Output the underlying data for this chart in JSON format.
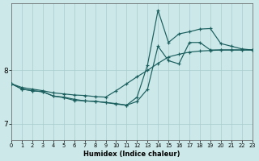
{
  "xlabel": "Humidex (Indice chaleur)",
  "bg_color": "#cce8e8",
  "grid_color": "#a8cccc",
  "line_color": "#1a5e5e",
  "xlim": [
    0,
    23
  ],
  "ylim": [
    6.7,
    9.25
  ],
  "yticks": [
    7,
    8
  ],
  "xticks": [
    0,
    1,
    2,
    3,
    4,
    5,
    6,
    7,
    8,
    9,
    10,
    11,
    12,
    13,
    14,
    15,
    16,
    17,
    18,
    19,
    20,
    21,
    22,
    23
  ],
  "line1_x": [
    0,
    1,
    2,
    3,
    4,
    5,
    6,
    7,
    8,
    9,
    10,
    11,
    12,
    13,
    14,
    15,
    16,
    17,
    18,
    19,
    20,
    21,
    22,
    23
  ],
  "line1_y": [
    7.75,
    7.68,
    7.65,
    7.62,
    7.58,
    7.56,
    7.54,
    7.53,
    7.51,
    7.5,
    7.62,
    7.75,
    7.88,
    8.0,
    8.13,
    8.25,
    8.3,
    8.34,
    8.36,
    8.37,
    8.38,
    8.38,
    8.38,
    8.38
  ],
  "line2_x": [
    0,
    1,
    2,
    3,
    4,
    5,
    6,
    7,
    8,
    9,
    10,
    11,
    12,
    13,
    14,
    15,
    16,
    17,
    18,
    19,
    20,
    21,
    22,
    23
  ],
  "line2_y": [
    7.75,
    7.65,
    7.62,
    7.6,
    7.52,
    7.5,
    7.46,
    7.43,
    7.42,
    7.4,
    7.37,
    7.35,
    7.5,
    8.1,
    9.12,
    8.52,
    8.68,
    8.72,
    8.77,
    8.78,
    8.5,
    8.45,
    8.4,
    8.38
  ],
  "line3_x": [
    0,
    1,
    2,
    3,
    4,
    5,
    6,
    7,
    8,
    9,
    10,
    11,
    12,
    13,
    14,
    15,
    16,
    17,
    18,
    19,
    20,
    21,
    22,
    23
  ],
  "line3_y": [
    7.75,
    7.65,
    7.62,
    7.6,
    7.52,
    7.49,
    7.44,
    7.43,
    7.42,
    7.4,
    7.38,
    7.35,
    7.42,
    7.65,
    8.45,
    8.18,
    8.12,
    8.52,
    8.52,
    8.38,
    8.38,
    8.38,
    8.38,
    8.38
  ]
}
